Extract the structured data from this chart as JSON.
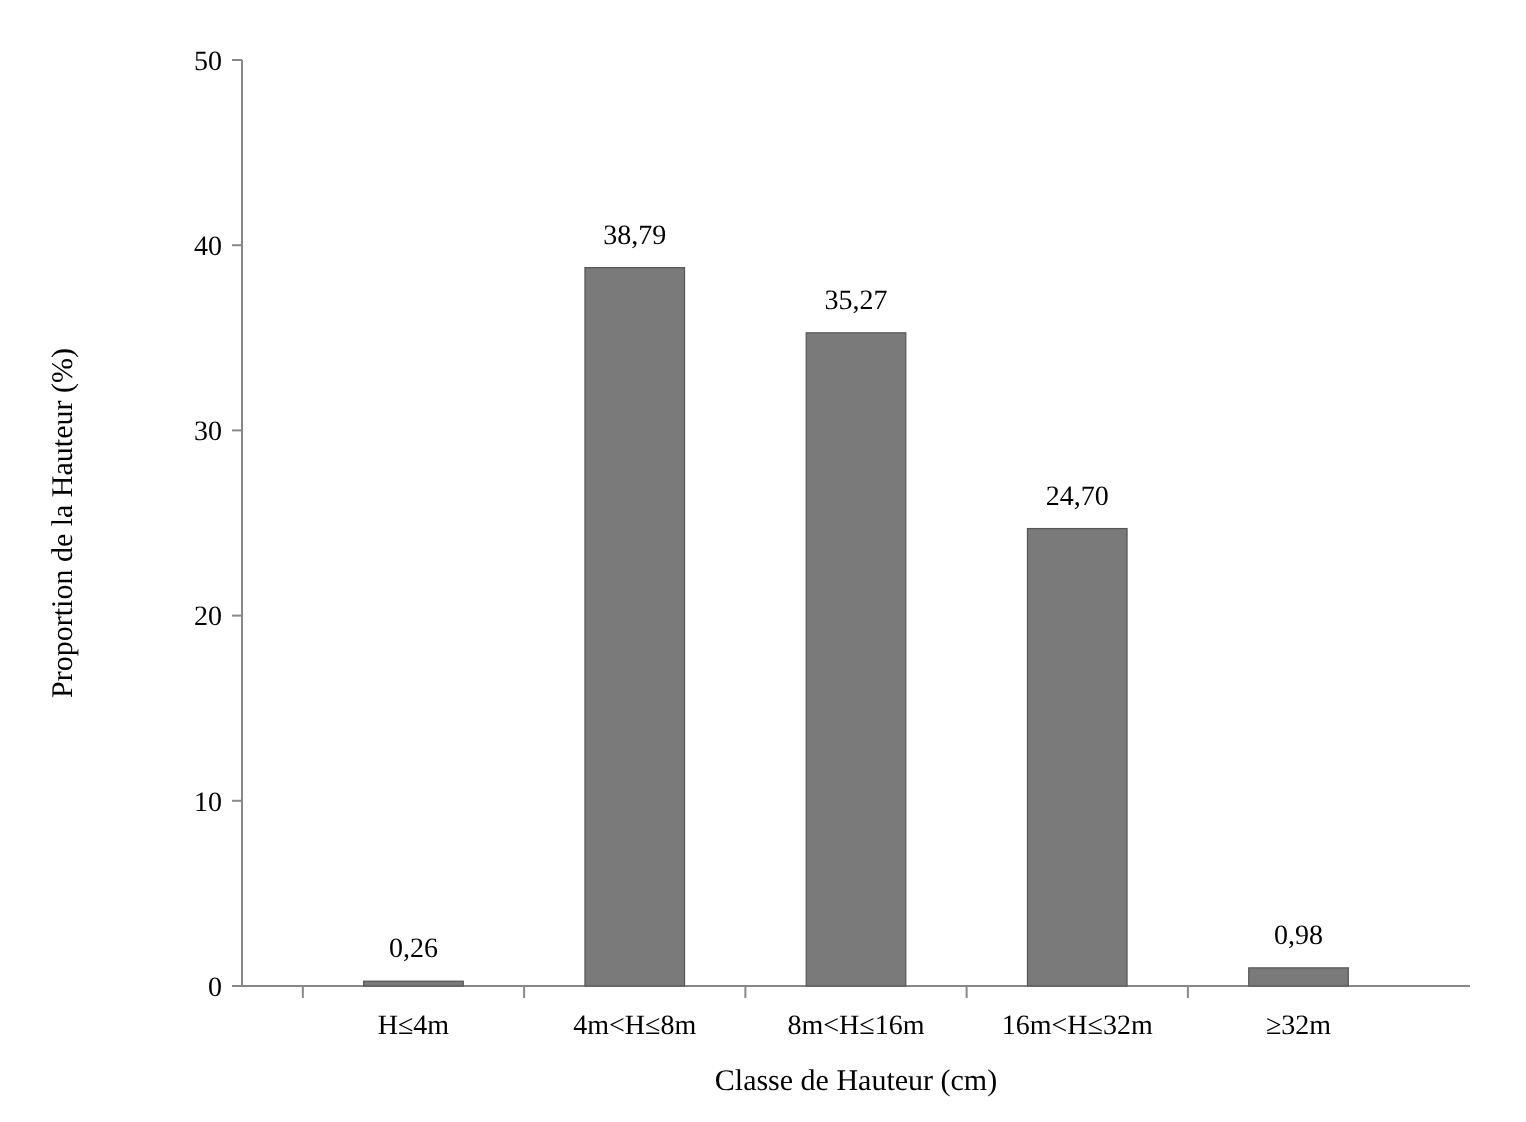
{
  "chart_data": {
    "type": "bar",
    "xlabel": "Classe de Hauteur (cm)",
    "ylabel": "Proportion de la Hauteur  (%)",
    "categories": [
      "H≤4m",
      "4m<H≤8m",
      "8m<H≤16m",
      "16m<H≤32m",
      "≥32m"
    ],
    "values": [
      0.26,
      38.79,
      35.27,
      24.7,
      0.98
    ],
    "value_labels": [
      "0,26",
      "38,79",
      "35,27",
      "24,70",
      "0,98"
    ],
    "color": "#7a7a7a",
    "ylim": [
      0,
      50
    ],
    "yticks": [
      0,
      10,
      20,
      30,
      40,
      50
    ],
    "grid": false
  }
}
